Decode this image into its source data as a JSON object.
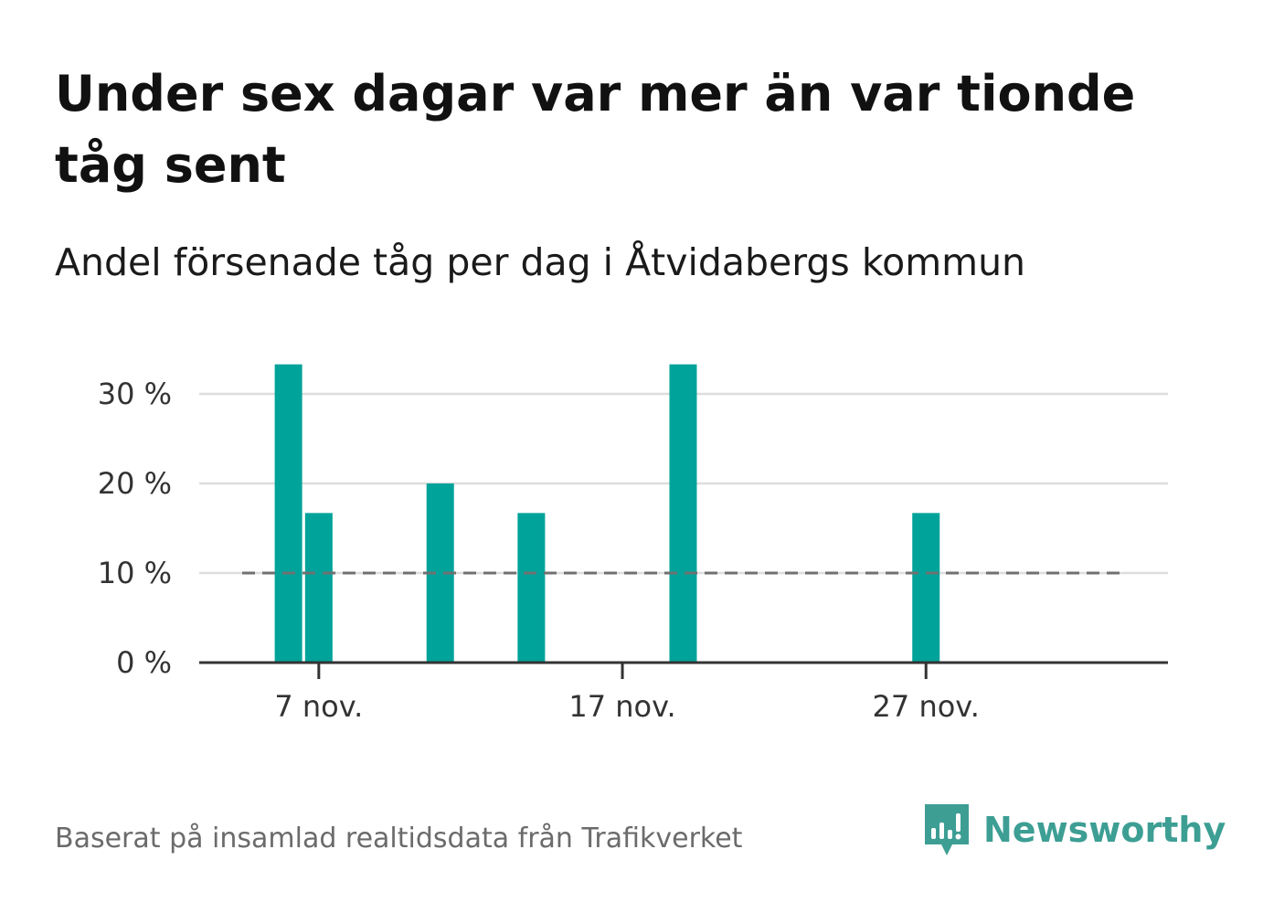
{
  "title": "Under sex dagar var mer än var tionde tåg sent",
  "subtitle": "Andel försenade tåg per dag i Åtvidabergs kommun",
  "source": "Baserat på insamlad realtidsdata från Trafikverket",
  "brand": {
    "name": "Newsworthy",
    "icon": "newsworthy-logo-icon"
  },
  "colors": {
    "bar": "#00a39a",
    "reference": "#707070",
    "grid": "#dddddd",
    "axis": "#333333",
    "brand": "#3d9e94"
  },
  "chart_data": {
    "type": "bar",
    "title": "Under sex dagar var mer än var tionde tåg sent",
    "subtitle": "Andel försenade tåg per dag i Åtvidabergs kommun",
    "x_unit": "day of November",
    "x_range": [
      1,
      30
    ],
    "xticks": [
      {
        "day": 7,
        "label": "7 nov."
      },
      {
        "day": 17,
        "label": "17 nov."
      },
      {
        "day": 27,
        "label": "27 nov."
      }
    ],
    "yticks": [
      {
        "value": 0,
        "label": "0 %"
      },
      {
        "value": 10,
        "label": "10 %"
      },
      {
        "value": 20,
        "label": "20 %"
      },
      {
        "value": 30,
        "label": "30 %"
      }
    ],
    "ylim": [
      0,
      33.3
    ],
    "grid": true,
    "reference_line": {
      "value": 10,
      "style": "dashed"
    },
    "bars": [
      {
        "day": 6,
        "value": 33.3
      },
      {
        "day": 7,
        "value": 16.7
      },
      {
        "day": 11,
        "value": 20
      },
      {
        "day": 14,
        "value": 16.7
      },
      {
        "day": 19,
        "value": 33.3
      },
      {
        "day": 27,
        "value": 16.7
      }
    ]
  }
}
